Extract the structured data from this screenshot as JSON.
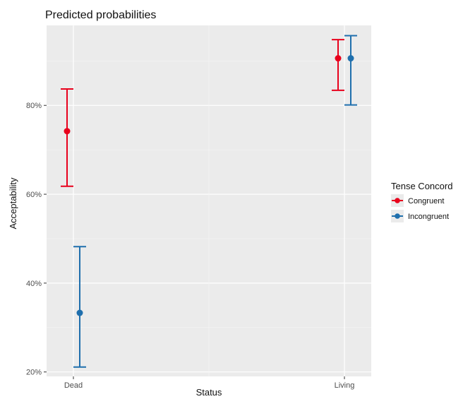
{
  "chart_data": {
    "type": "scatter",
    "variant": "point-with-errorbars",
    "title": "Predicted probabilities",
    "xlabel": "Status",
    "ylabel": "Acceptability",
    "categories": [
      "Dead",
      "Living"
    ],
    "ylim": [
      0.19,
      0.98
    ],
    "yticks": [
      0.2,
      0.4,
      0.6,
      0.8
    ],
    "ytick_labels": [
      "20%",
      "40%",
      "60%",
      "80%"
    ],
    "grid": true,
    "legend": {
      "title": "Tense Concord",
      "placement": "right"
    },
    "series": [
      {
        "name": "Congruent",
        "color": "#e8001c",
        "points": [
          {
            "x": "Dead",
            "y": 0.742,
            "ymin": 0.618,
            "ymax": 0.837
          },
          {
            "x": "Living",
            "y": 0.906,
            "ymin": 0.834,
            "ymax": 0.948
          }
        ]
      },
      {
        "name": "Incongruent",
        "color": "#1f6fad",
        "points": [
          {
            "x": "Dead",
            "y": 0.333,
            "ymin": 0.211,
            "ymax": 0.482
          },
          {
            "x": "Living",
            "y": 0.906,
            "ymin": 0.801,
            "ymax": 0.957
          }
        ]
      }
    ]
  }
}
